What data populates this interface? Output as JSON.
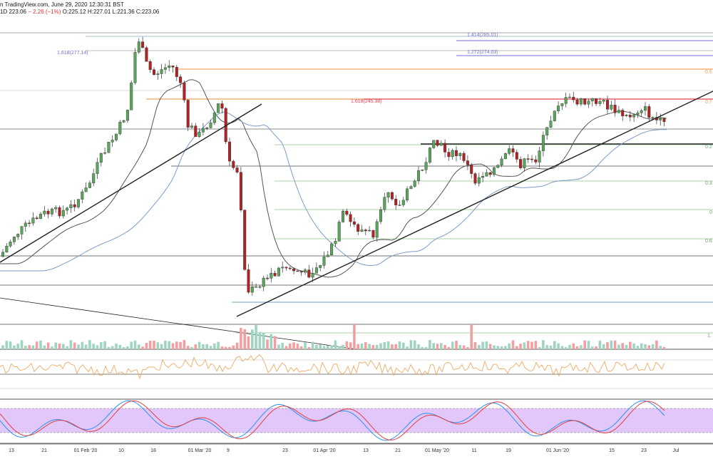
{
  "header": {
    "publisher_line": "n TradingView.com, June 29, 2020 12:30:31 BST",
    "interval": "1D",
    "last_price": "223.06",
    "change": "− 2.26 (−1%)",
    "open": "O:225.12",
    "high": "H:227.01",
    "low": "L:221.36",
    "close": "C:223.06"
  },
  "fib_labels": [
    {
      "text": "1.414(285.01)",
      "value": 285.01
    },
    {
      "text": "1.272(274.03)",
      "value": 274.03
    },
    {
      "text": "1.618(277.14)",
      "value": 277.14
    },
    {
      "text": "1.618(245.38)",
      "value": 245.38
    }
  ],
  "right_edge_labels": [
    "0.6",
    "0.7",
    "0.2",
    "0.3",
    "0",
    "0.6",
    "1."
  ],
  "x_axis_labels": [
    "13",
    "21",
    "01 Feb '20",
    "10",
    "18",
    "01 Mar '20",
    "9",
    "23",
    "01 Apr '20",
    "13",
    "21",
    "01 May '20",
    "11",
    "19",
    "01 Jun '20",
    "15",
    "23",
    "Jul"
  ],
  "colors": {
    "up": "#5aa55a",
    "down": "#b22222",
    "ma_dark": "#555555",
    "ma_blue": "#7a9cc6",
    "rsi": "#f0a050",
    "stoch_k": "#2f8ff0",
    "stoch_d": "#e04040",
    "stoch_band": "#d8b4f8",
    "vol_up": "#9fd4c0",
    "vol_down": "#f0a0a0",
    "fib_orange": "#f5a15a",
    "fib_red": "#e04050",
    "fib_blue": "#7070d0",
    "fib_green": "#8cc08c"
  },
  "chart_data": {
    "type": "candlestick",
    "ohlc_close_series": [
      [
        "2020-01-06",
        140
      ],
      [
        "2020-01-13",
        146
      ],
      [
        "2020-01-21",
        165
      ],
      [
        "2020-01-28",
        175
      ],
      [
        "2020-02-04",
        190
      ],
      [
        "2020-02-10",
        222
      ],
      [
        "2020-02-14",
        268
      ],
      [
        "2020-02-18",
        262
      ],
      [
        "2020-02-24",
        253
      ],
      [
        "2020-03-01",
        225
      ],
      [
        "2020-03-06",
        238
      ],
      [
        "2020-03-09",
        198
      ],
      [
        "2020-03-12",
        112
      ],
      [
        "2020-03-16",
        122
      ],
      [
        "2020-03-23",
        133
      ],
      [
        "2020-04-01",
        140
      ],
      [
        "2020-04-06",
        170
      ],
      [
        "2020-04-13",
        160
      ],
      [
        "2020-04-21",
        180
      ],
      [
        "2020-04-29",
        207
      ],
      [
        "2020-05-06",
        210
      ],
      [
        "2020-05-11",
        183
      ],
      [
        "2020-05-19",
        205
      ],
      [
        "2020-05-26",
        215
      ],
      [
        "2020-06-01",
        245
      ],
      [
        "2020-06-08",
        245
      ],
      [
        "2020-06-15",
        233
      ],
      [
        "2020-06-22",
        232
      ],
      [
        "2020-06-29",
        223.06
      ]
    ],
    "y_range": [
      100,
      295
    ],
    "last_candle": {
      "open": 225.12,
      "high": 227.01,
      "low": 221.36,
      "close": 223.06
    }
  }
}
